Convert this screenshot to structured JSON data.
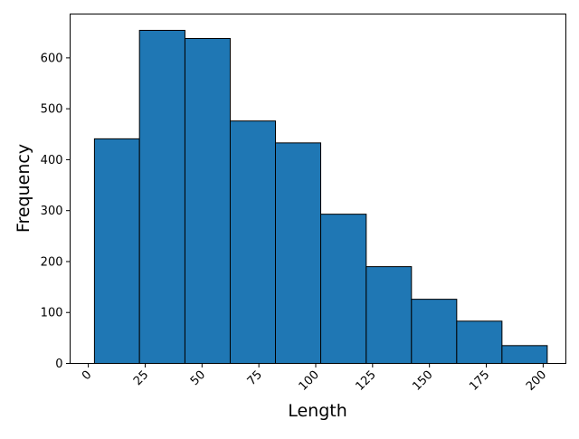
{
  "chart_data": {
    "type": "bar",
    "title": "",
    "xlabel": "Length",
    "ylabel": "Frequency",
    "bin_edges": [
      2.7,
      22.5,
      42.5,
      62.4,
      82.3,
      102.2,
      122.2,
      142.1,
      162.0,
      181.9,
      201.8
    ],
    "values": [
      441,
      654,
      638,
      476,
      433,
      293,
      190,
      126,
      83,
      35
    ],
    "xlim": [
      -8,
      210
    ],
    "ylim": [
      0,
      686
    ],
    "xticks": [
      0,
      25,
      50,
      75,
      100,
      125,
      150,
      175,
      200
    ],
    "xtick_labels": [
      "0",
      "25",
      "50",
      "75",
      "100",
      "125",
      "150",
      "175",
      "200"
    ],
    "yticks": [
      0,
      100,
      200,
      300,
      400,
      500,
      600
    ],
    "ytick_labels": [
      "0",
      "100",
      "200",
      "300",
      "400",
      "500",
      "600"
    ],
    "xtick_rotation": 45,
    "bar_color": "#1f77b4",
    "edge_color": "#000000",
    "grid": false,
    "legend": "none"
  }
}
